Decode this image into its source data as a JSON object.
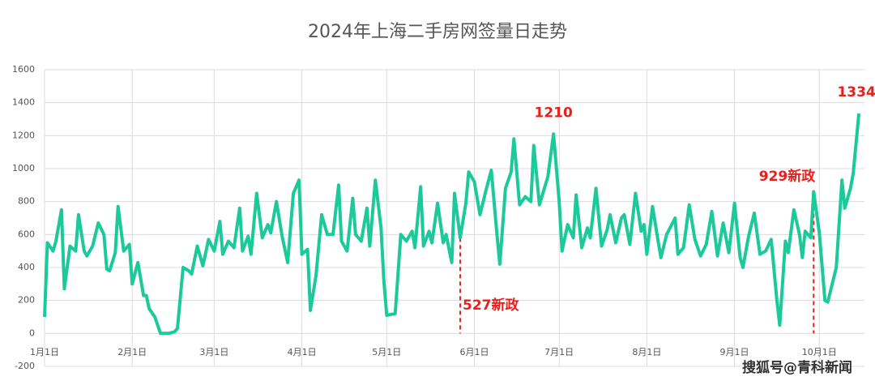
{
  "chart_data": {
    "type": "line",
    "title": "2024年上海二手房网签量日走势",
    "x": [
      "1月1日",
      "1月2日",
      "1月4日",
      "1月5日",
      "1月7日",
      "1月8日",
      "1月10日",
      "1月12日",
      "1月13日",
      "1月15日",
      "1月16日",
      "1月18日",
      "1月20日",
      "1月22日",
      "1月23日",
      "1月24日",
      "1月26日",
      "1月27日",
      "1月29日",
      "1月31日",
      "2月1日",
      "2月3日",
      "2月5日",
      "2月6日",
      "2月7日",
      "2月9日",
      "2月11日",
      "2月14日",
      "2月16日",
      "2月17日",
      "2月19日",
      "2月21日",
      "2月22日",
      "2月24日",
      "2月26日",
      "2月28日",
      "3月1日",
      "3月3日",
      "3月4日",
      "3月6日",
      "3月8日",
      "3月10日",
      "3月11日",
      "3月13日",
      "3月14日",
      "3月16日",
      "3月18日",
      "3月20日",
      "3月21日",
      "3月23日",
      "3月25日",
      "3月27日",
      "3月29日",
      "3月31日",
      "4月1日",
      "4月3日",
      "4月4日",
      "4月6日",
      "4月8日",
      "4月10日",
      "4月12日",
      "4月14日",
      "4月15日",
      "4月17日",
      "4月19日",
      "4月20日",
      "4月22日",
      "4月24日",
      "4月25日",
      "4月27日",
      "4月29日",
      "4月30日",
      "5月1日",
      "5月4日",
      "5月6日",
      "5月8日",
      "5月10日",
      "5月11日",
      "5月13日",
      "5月14日",
      "5月16日",
      "5月17日",
      "5月19日",
      "5月21日",
      "5月22日",
      "5月24日",
      "5月25日",
      "5月27日",
      "5月29日",
      "5月30日",
      "6月1日",
      "6月3日",
      "6月5日",
      "6月7日",
      "6月9日",
      "6月10日",
      "6月12日",
      "6月14日",
      "6月15日",
      "6月17日",
      "6月19日",
      "6月21日",
      "6月22日",
      "6月24日",
      "6月27日",
      "6月29日",
      "7月1日",
      "7月2日",
      "7月4日",
      "7月6日",
      "7月7日",
      "7月9日",
      "7月11日",
      "7月12日",
      "7月14日",
      "7月16日",
      "7月18日",
      "7月19日",
      "7月21日",
      "7月23日",
      "7月24日",
      "7月26日",
      "7月28日",
      "7月30日",
      "7月31日",
      "8月1日",
      "8月3日",
      "8月5日",
      "8月6日",
      "8月8日",
      "8月11日",
      "8月12日",
      "8月14日",
      "8月16日",
      "8月18日",
      "8月20日",
      "8月22日",
      "8月24日",
      "8月26日",
      "8月28日",
      "8月30日",
      "9月1日",
      "9月3日",
      "9月4日",
      "9月6日",
      "9月8日",
      "9月10日",
      "9月12日",
      "9月14日",
      "9月16日",
      "9月17日",
      "9月19日",
      "9月20日",
      "9月22日",
      "9月24日",
      "9月25日",
      "9月26日",
      "9月28日",
      "9月29日",
      "10月1日",
      "10月3日",
      "10月4日",
      "10月7日",
      "10月9日",
      "10月10日",
      "10月12日",
      "10月13日",
      "10月15日"
    ],
    "values": [
      100,
      550,
      500,
      560,
      750,
      270,
      530,
      500,
      720,
      500,
      470,
      530,
      670,
      600,
      390,
      380,
      490,
      770,
      500,
      540,
      300,
      430,
      230,
      230,
      150,
      100,
      0,
      0,
      10,
      30,
      400,
      380,
      360,
      530,
      410,
      570,
      500,
      680,
      480,
      560,
      520,
      760,
      500,
      590,
      480,
      850,
      580,
      660,
      610,
      800,
      590,
      430,
      850,
      930,
      480,
      510,
      140,
      350,
      720,
      600,
      600,
      900,
      560,
      500,
      820,
      600,
      560,
      760,
      530,
      930,
      640,
      320,
      110,
      120,
      600,
      560,
      620,
      520,
      890,
      530,
      620,
      550,
      790,
      550,
      600,
      430,
      850,
      580,
      790,
      980,
      920,
      720,
      860,
      990,
      600,
      420,
      880,
      980,
      1180,
      780,
      830,
      800,
      1140,
      780,
      950,
      1210,
      800,
      500,
      660,
      580,
      840,
      520,
      640,
      580,
      880,
      530,
      630,
      720,
      550,
      700,
      720,
      540,
      850,
      620,
      660,
      480,
      770,
      560,
      460,
      600,
      700,
      480,
      520,
      780,
      570,
      470,
      540,
      740,
      470,
      670,
      490,
      790,
      460,
      400,
      590,
      730,
      480,
      500,
      570,
      200,
      50,
      560,
      490,
      750,
      600,
      460,
      620,
      580,
      860,
      610,
      200,
      190,
      400,
      930,
      760,
      880,
      970,
      1334
    ],
    "color": "#1cc99a",
    "ylim": [
      -200,
      1600
    ],
    "yticks": [
      -200,
      0,
      200,
      400,
      600,
      800,
      1000,
      1200,
      1400,
      1600
    ],
    "xticks": [
      "1月1日",
      "2月1日",
      "3月1日",
      "4月1日",
      "5月1日",
      "6月1日",
      "7月1日",
      "8月1日",
      "9月1日",
      "10月1日"
    ],
    "grid": true,
    "annotations": [
      {
        "text": "1210",
        "x": "6月29日"
      },
      {
        "text": "1334",
        "x": "10月15日"
      },
      {
        "text": "527新政",
        "x": "5月27日"
      },
      {
        "text": "929新政",
        "x": "9月29日"
      }
    ],
    "watermark": "搜狐号@青科新闻"
  }
}
